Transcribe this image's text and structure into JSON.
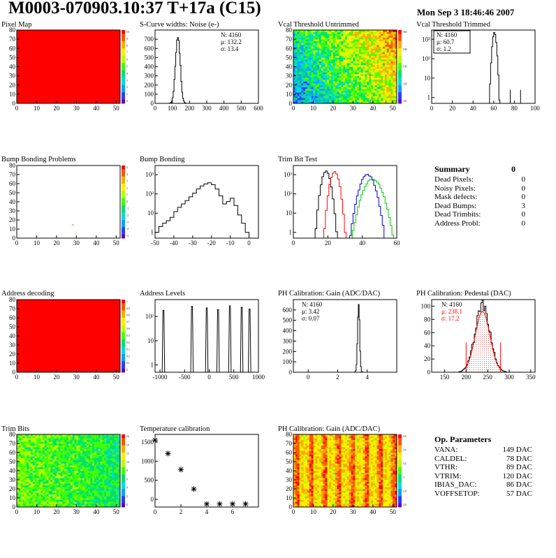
{
  "header": {
    "title": "M0003-070903.10:37 T+17a (C15)",
    "date": "Mon Sep  3 18:46:46 2007"
  },
  "colorbars": {
    "pixel_map": [
      "10",
      "9",
      "8",
      "7",
      "6",
      "5",
      "4",
      "3",
      "2",
      "1",
      "0"
    ],
    "bump_bonding_problems": [
      "5",
      "4",
      "3",
      "2",
      "1",
      "0",
      "-1",
      "-2",
      "-3",
      "-4",
      "-5"
    ],
    "vcal_untrimmed": [
      "160",
      "140",
      "130",
      "120",
      "110"
    ],
    "address_decoding": [
      "1",
      "0.9",
      "0.8",
      "0.7",
      "0.6",
      "0.5",
      "0.4",
      "0.3",
      "0.2",
      "0.1",
      "0"
    ],
    "trim_bits": [
      "16",
      "14",
      "12",
      "10",
      "8",
      "6",
      "4",
      "2",
      "0"
    ],
    "ph_gain_map": [
      "3.6",
      "3.4",
      "3.2",
      "3",
      "2.8",
      "2.6"
    ]
  },
  "colors": {
    "axis": "#000000",
    "red": "#ff0000",
    "green": "#00cc00",
    "blue": "#0000cc",
    "hatch": "#e06060"
  },
  "summary": {
    "title": "Summary",
    "total": "0",
    "rows": [
      {
        "label": "Dead Pixels:",
        "value": "0"
      },
      {
        "label": "Noisy Pixels:",
        "value": "0"
      },
      {
        "label": "Mask defects:",
        "value": "0"
      },
      {
        "label": "Dead Bumps:",
        "value": "3"
      },
      {
        "label": "Dead Trimbits:",
        "value": "0"
      },
      {
        "label": "Address Probl:",
        "value": "0"
      }
    ]
  },
  "op_parameters": {
    "title": "Op. Parameters",
    "rows": [
      {
        "label": "VANA:",
        "value": "149 DAC"
      },
      {
        "label": "CALDEL:",
        "value": "78 DAC"
      },
      {
        "label": "VTHR:",
        "value": "89 DAC"
      },
      {
        "label": "VTRIM:",
        "value": "120 DAC"
      },
      {
        "label": "IBIAS_DAC:",
        "value": "86 DAC"
      },
      {
        "label": "VOFFSETOP:",
        "value": "57 DAC"
      }
    ]
  },
  "chart_data": [
    {
      "id": "pixel_map",
      "type": "heatmap",
      "title": "Pixel Map",
      "xlim": [
        0,
        52
      ],
      "ylim": [
        0,
        80
      ],
      "xticks": [
        "0",
        "10",
        "20",
        "30",
        "40",
        "50"
      ],
      "yticks": [
        "0",
        "10",
        "20",
        "30",
        "40",
        "50",
        "60",
        "70",
        "80"
      ],
      "description_value": "all pixels at max (10)",
      "fill": "#ff0000"
    },
    {
      "id": "scurve",
      "type": "histogram",
      "title": "S-Curve widths: Noise (e-)",
      "xlim": [
        0,
        600
      ],
      "ylim": [
        0,
        800
      ],
      "xticks": [
        "0",
        "100",
        "200",
        "300",
        "400",
        "500",
        "600"
      ],
      "yticks": [
        "0",
        "100",
        "200",
        "300",
        "400",
        "500",
        "600",
        "700"
      ],
      "stats": {
        "N": "N: 4160",
        "mu": "μ: 132.2",
        "sigma": "σ: 13.4"
      },
      "peak_center": 132.2,
      "peak_sigma": 13.4,
      "peak_height": 760
    },
    {
      "id": "vcal_untrimmed",
      "type": "heatmap",
      "title": "Vcal Threshold Untrimmed",
      "xlim": [
        0,
        52
      ],
      "ylim": [
        0,
        80
      ],
      "xticks": [
        "0",
        "10",
        "20",
        "30",
        "40",
        "50"
      ],
      "yticks": [
        "0",
        "10",
        "20",
        "30",
        "40",
        "50",
        "60",
        "70",
        "80"
      ]
    },
    {
      "id": "vcal_trimmed",
      "type": "histogram",
      "title": "Vcal Threshold Trimmed",
      "xlim": [
        0,
        100
      ],
      "log": true,
      "xticks": [
        "0",
        "20",
        "40",
        "60",
        "80",
        "100"
      ],
      "yticks": [
        "1",
        "10",
        "10²",
        "10³"
      ],
      "stats": {
        "N": "N: 4160",
        "mu": "μ: 60.7",
        "sigma": "σ:  1.2"
      },
      "peak_center": 60.7,
      "peak_sigma": 1.2,
      "peak_height": 2200,
      "outliers": [
        [
          76,
          1
        ],
        [
          86,
          1
        ]
      ]
    },
    {
      "id": "bump_problems",
      "type": "heatmap",
      "title": "Bump Bonding Problems",
      "xlim": [
        0,
        52
      ],
      "ylim": [
        0,
        80
      ],
      "xticks": [
        "0",
        "10",
        "20",
        "30",
        "40",
        "50"
      ],
      "yticks": [
        "0",
        "10",
        "20",
        "30",
        "40",
        "50",
        "60",
        "70",
        "80"
      ],
      "points": [
        [
          28,
          14
        ]
      ]
    },
    {
      "id": "bump_bonding",
      "type": "histogram",
      "title": "Bump Bonding",
      "xlim": [
        -50,
        5
      ],
      "log": true,
      "xticks": [
        "-50",
        "-40",
        "-30",
        "-20",
        "-10",
        "0"
      ],
      "yticks": [
        "1",
        "10",
        "10²",
        "10³"
      ],
      "x": [
        -50,
        -48,
        -46,
        -44,
        -42,
        -40,
        -38,
        -36,
        -34,
        -32,
        -30,
        -28,
        -26,
        -24,
        -22,
        -20,
        -18,
        -16,
        -14,
        -12,
        -10,
        -8,
        -6,
        -4,
        -2,
        0
      ],
      "values": [
        1,
        2,
        3,
        4,
        6,
        12,
        20,
        30,
        45,
        70,
        110,
        180,
        260,
        330,
        380,
        300,
        180,
        80,
        30,
        40,
        60,
        25,
        8,
        3,
        1,
        0
      ]
    },
    {
      "id": "trim_bit_test",
      "type": "histogram",
      "title": "Trim Bit Test",
      "xlim": [
        0,
        60
      ],
      "log": true,
      "xticks": [
        "0",
        "20",
        "40",
        "60"
      ],
      "yticks": [
        "1",
        "10",
        "10²",
        "10³"
      ],
      "series": [
        {
          "color": "#000000",
          "center": 19,
          "sigma": 1.6,
          "peak": 1500
        },
        {
          "color": "#ff0000",
          "center": 24,
          "sigma": 1.6,
          "peak": 1500
        },
        {
          "color": "#0000cc",
          "center": 43,
          "sigma": 2.6,
          "peak": 1000
        },
        {
          "color": "#00cc00",
          "center": 46,
          "sigma": 3.2,
          "peak": 600
        }
      ]
    },
    {
      "id": "address_decoding",
      "type": "heatmap",
      "title": "Address decoding",
      "xlim": [
        0,
        52
      ],
      "ylim": [
        0,
        80
      ],
      "xticks": [
        "0",
        "10",
        "20",
        "30",
        "40",
        "50"
      ],
      "yticks": [
        "0",
        "10",
        "20",
        "30",
        "40",
        "50",
        "60",
        "70",
        "80"
      ],
      "fill": "#ff0000"
    },
    {
      "id": "address_levels",
      "type": "histogram",
      "title": "Address Levels",
      "xlim": [
        -1100,
        1000
      ],
      "log": true,
      "xticks": [
        "-1000",
        "-500",
        "0",
        "500",
        "1000"
      ],
      "yticks": [
        "1",
        "10",
        "10²"
      ],
      "spikes": [
        -930,
        -350,
        -50,
        180,
        420,
        660,
        820
      ]
    },
    {
      "id": "ph_gain",
      "type": "histogram",
      "title": "PH Calibration: Gain (ADC/DAC)",
      "xlim": [
        -1,
        6
      ],
      "ylim": [
        0,
        700
      ],
      "xticks": [
        "0",
        "2",
        "4"
      ],
      "yticks": [
        "0",
        "100",
        "200",
        "300",
        "400",
        "500",
        "600"
      ],
      "stats": {
        "N": "N: 4160",
        "mu": "μ: 3.42",
        "sigma": "σ: 0.07"
      },
      "peak_center": 3.42,
      "peak_sigma": 0.07,
      "peak_height": 660
    },
    {
      "id": "ph_pedestal",
      "type": "histogram",
      "title": "PH Calibration: Pedestal (DAC)",
      "xlim": [
        120,
        360
      ],
      "ylim": [
        0,
        110
      ],
      "xticks": [
        "150",
        "200",
        "250",
        "300",
        "350"
      ],
      "yticks": [
        "0",
        "20",
        "40",
        "60",
        "80",
        "100"
      ],
      "stats": {
        "N": "N: 4160",
        "mu": "μ: 238.1",
        "sigma": "σ: 17.2"
      },
      "peak_center": 238.1,
      "peak_sigma": 17.2,
      "peak_height": 100,
      "fit_range": [
        200,
        280
      ]
    },
    {
      "id": "trim_bits",
      "type": "heatmap",
      "title": "Trim Bits",
      "xlim": [
        0,
        52
      ],
      "ylim": [
        0,
        80
      ],
      "xticks": [
        "0",
        "10",
        "20",
        "30",
        "40",
        "50"
      ],
      "yticks": [
        "0",
        "10",
        "20",
        "30",
        "40",
        "50",
        "60",
        "70",
        "80"
      ]
    },
    {
      "id": "temperature",
      "type": "scatter",
      "title": "Temperature calibration",
      "xlim": [
        0,
        8
      ],
      "ylim": [
        -200,
        1700
      ],
      "xticks": [
        "0",
        "2",
        "4",
        "6"
      ],
      "yticks": [
        "0",
        "500",
        "1000",
        "1500"
      ],
      "x": [
        0,
        1,
        2,
        3,
        4,
        5,
        6,
        7
      ],
      "y": [
        1550,
        1200,
        780,
        270,
        -120,
        -120,
        -120,
        -120
      ]
    },
    {
      "id": "ph_gain_map",
      "type": "heatmap",
      "title": "PH Calibration: Gain (ADC/DAC)",
      "xlim": [
        0,
        52
      ],
      "ylim": [
        0,
        80
      ],
      "xticks": [
        "0",
        "10",
        "20",
        "30",
        "40",
        "50"
      ],
      "yticks": [
        "0",
        "10",
        "20",
        "30",
        "40",
        "50",
        "60",
        "70",
        "80"
      ]
    }
  ]
}
